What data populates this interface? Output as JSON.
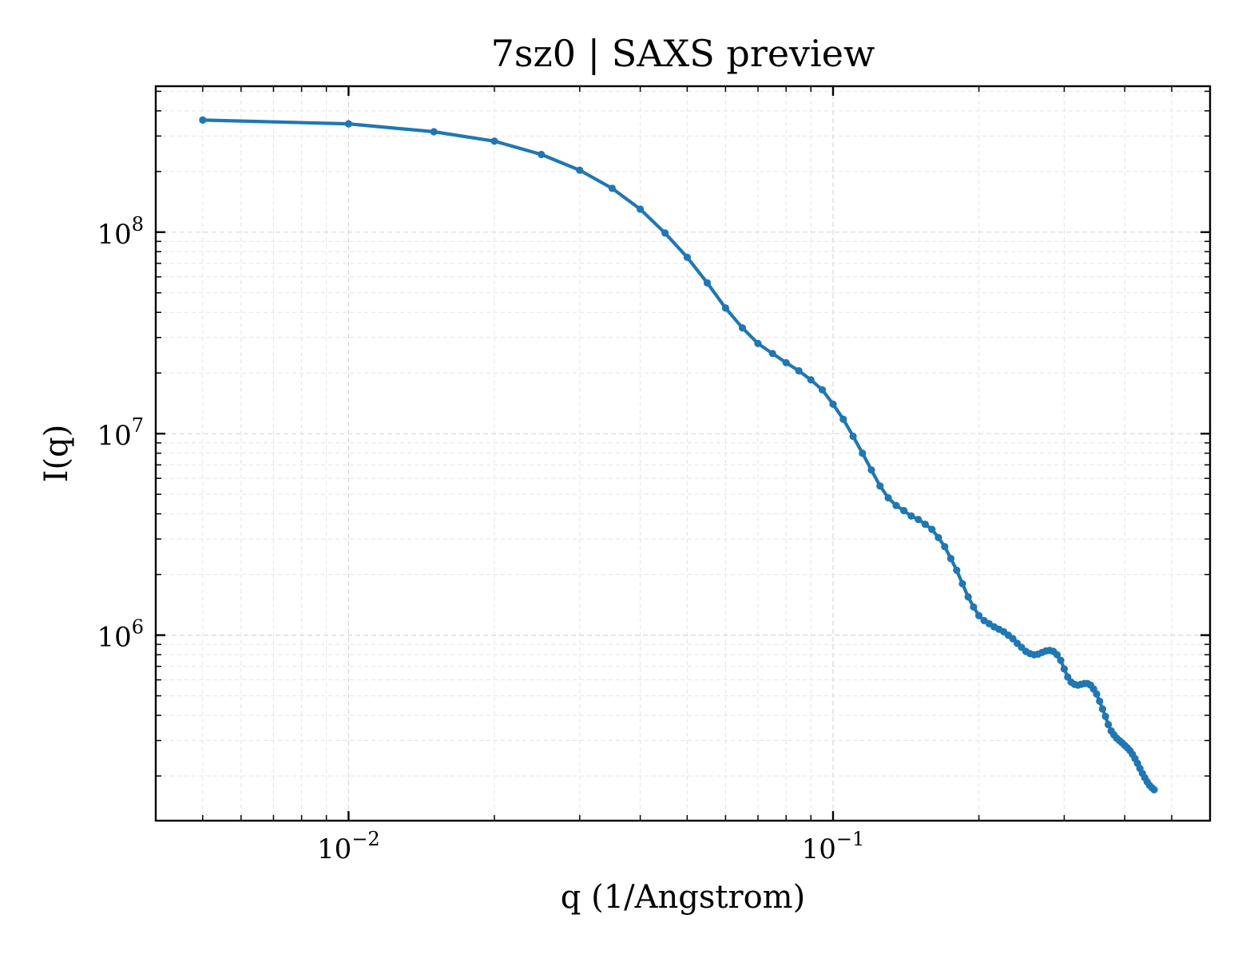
{
  "chart_data": {
    "type": "line",
    "title": "7sz0 | SAXS preview",
    "xlabel": "q (1/Angstrom)",
    "ylabel": "I(q)",
    "xscale": "log",
    "yscale": "log",
    "xlim": [
      0.004,
      0.6
    ],
    "ylim": [
      120000,
      530000000
    ],
    "grid": true,
    "legend": "none",
    "x_ticks": [
      {
        "base": "10",
        "exp": "−2",
        "value": 0.01
      },
      {
        "base": "10",
        "exp": "−1",
        "value": 0.1
      }
    ],
    "y_ticks": [
      {
        "base": "10",
        "exp": "6",
        "value": 1000000
      },
      {
        "base": "10",
        "exp": "7",
        "value": 10000000
      },
      {
        "base": "10",
        "exp": "8",
        "value": 100000000
      }
    ],
    "series": [
      {
        "color": "#1f77b4",
        "marker": "circle",
        "points": [
          [
            0.005,
            360000000
          ],
          [
            0.01,
            345000000
          ],
          [
            0.015,
            315000000
          ],
          [
            0.02,
            283000000
          ],
          [
            0.025,
            243000000
          ],
          [
            0.03,
            203000000
          ],
          [
            0.035,
            165000000
          ],
          [
            0.04,
            130000000
          ],
          [
            0.045,
            99000000
          ],
          [
            0.05,
            75000000
          ],
          [
            0.055,
            56000000
          ],
          [
            0.06,
            42000000
          ],
          [
            0.065,
            33500000
          ],
          [
            0.07,
            28000000
          ],
          [
            0.075,
            25000000
          ],
          [
            0.08,
            22500000
          ],
          [
            0.085,
            20500000
          ],
          [
            0.09,
            18500000
          ],
          [
            0.095,
            16500000
          ],
          [
            0.1,
            14000000
          ],
          [
            0.105,
            11800000
          ],
          [
            0.11,
            9700000
          ],
          [
            0.115,
            8000000
          ],
          [
            0.12,
            6600000
          ],
          [
            0.125,
            5500000
          ],
          [
            0.13,
            4800000
          ],
          [
            0.135,
            4400000
          ],
          [
            0.14,
            4150000
          ],
          [
            0.145,
            3900000
          ],
          [
            0.15,
            3750000
          ],
          [
            0.155,
            3550000
          ],
          [
            0.16,
            3350000
          ],
          [
            0.165,
            3050000
          ],
          [
            0.17,
            2750000
          ],
          [
            0.175,
            2400000
          ],
          [
            0.18,
            2100000
          ],
          [
            0.185,
            1800000
          ],
          [
            0.19,
            1550000
          ],
          [
            0.195,
            1380000
          ],
          [
            0.2,
            1250000
          ],
          [
            0.205,
            1180000
          ],
          [
            0.21,
            1140000
          ],
          [
            0.215,
            1100000
          ],
          [
            0.22,
            1070000
          ],
          [
            0.225,
            1040000
          ],
          [
            0.23,
            1000000
          ],
          [
            0.235,
            960000
          ],
          [
            0.24,
            910000
          ],
          [
            0.245,
            870000
          ],
          [
            0.25,
            830000
          ],
          [
            0.255,
            810000
          ],
          [
            0.26,
            800000
          ],
          [
            0.265,
            805000
          ],
          [
            0.27,
            820000
          ],
          [
            0.275,
            835000
          ],
          [
            0.28,
            840000
          ],
          [
            0.285,
            830000
          ],
          [
            0.29,
            800000
          ],
          [
            0.295,
            750000
          ],
          [
            0.3,
            680000
          ],
          [
            0.305,
            620000
          ],
          [
            0.31,
            585000
          ],
          [
            0.315,
            570000
          ],
          [
            0.32,
            565000
          ],
          [
            0.325,
            570000
          ],
          [
            0.33,
            575000
          ],
          [
            0.335,
            575000
          ],
          [
            0.34,
            565000
          ],
          [
            0.345,
            540000
          ],
          [
            0.35,
            510000
          ],
          [
            0.355,
            470000
          ],
          [
            0.36,
            430000
          ],
          [
            0.365,
            395000
          ],
          [
            0.37,
            360000
          ],
          [
            0.375,
            335000
          ],
          [
            0.38,
            320000
          ],
          [
            0.385,
            308000
          ],
          [
            0.39,
            300000
          ],
          [
            0.395,
            292000
          ],
          [
            0.4,
            284000
          ],
          [
            0.405,
            276000
          ],
          [
            0.41,
            267000
          ],
          [
            0.415,
            256000
          ],
          [
            0.42,
            244000
          ],
          [
            0.425,
            231000
          ],
          [
            0.43,
            218000
          ],
          [
            0.435,
            206000
          ],
          [
            0.44,
            196000
          ],
          [
            0.445,
            187000
          ],
          [
            0.45,
            180000
          ],
          [
            0.455,
            175000
          ],
          [
            0.46,
            171000
          ]
        ]
      }
    ]
  }
}
